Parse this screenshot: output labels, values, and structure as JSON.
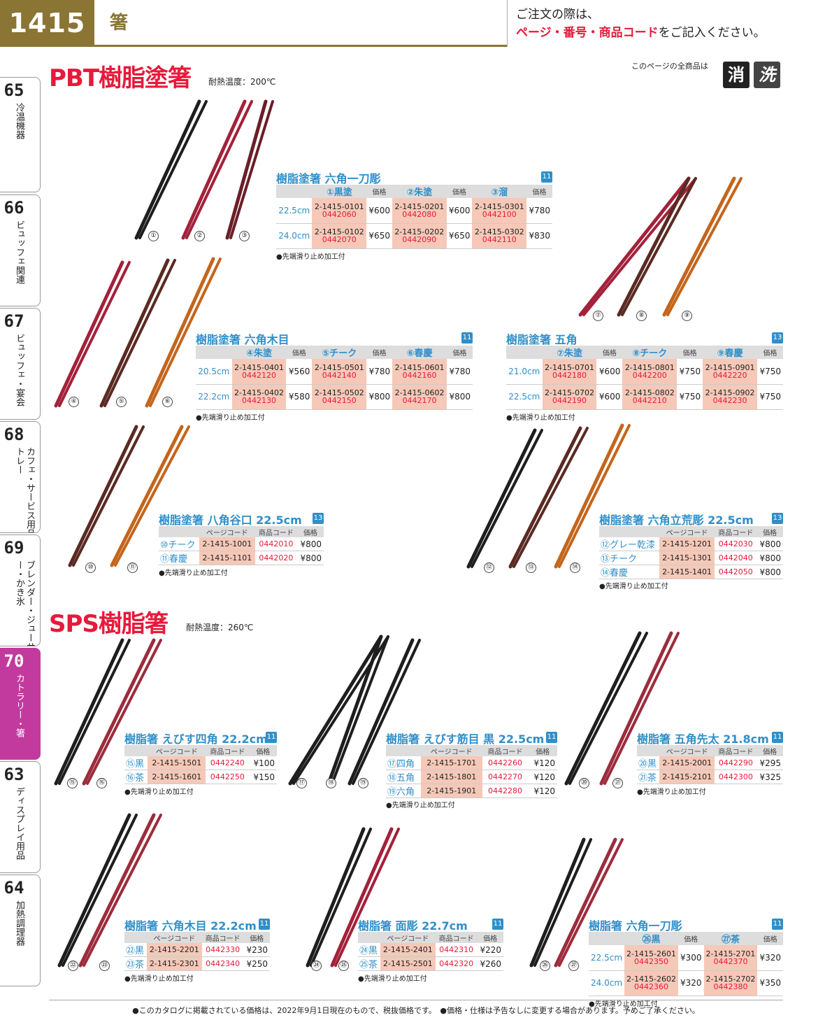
{
  "header": {
    "page_number": "1415",
    "category": "箸",
    "notice_line1": "ご注文の際は、",
    "notice_line2_red": "ページ・番号・商品コード",
    "notice_line2_black": "をご記入ください。"
  },
  "sidebar": [
    {
      "num": "65",
      "label": "冷温機器"
    },
    {
      "num": "66",
      "label": "ビュッフェ関連"
    },
    {
      "num": "67",
      "label": "ビュッフェ・宴会"
    },
    {
      "num": "68",
      "label": "カフェ・サービス用品・トレー"
    },
    {
      "num": "69",
      "label": "ブレンダー・ジューサー・かき氷"
    },
    {
      "num": "70",
      "label": "カトラリー・箸"
    },
    {
      "num": "63",
      "label": "ディスプレイ用品"
    },
    {
      "num": "64",
      "label": "加熱調理器"
    }
  ],
  "sections": {
    "pbt_title": "PBT樹脂塗箸",
    "pbt_note": "耐熱温度：200℃",
    "sps_title": "SPS樹脂箸",
    "sps_note": "耐熱温度：260℃",
    "all_items_label": "このページの全商品は",
    "badge1": "消",
    "badge2": "洗"
  },
  "labels": {
    "price": "価格",
    "page_code": "ページコード",
    "item_code": "商品コード",
    "tip_note": "●先端滑り止め加工付"
  },
  "products": {
    "p1": {
      "title": "樹脂塗箸 六角一刀彫",
      "badge": "11",
      "cols": [
        "①黒塗",
        "②朱塗",
        "③溜"
      ],
      "rows": [
        {
          "size": "22.5cm",
          "items": [
            [
              "2-1415-0101",
              "0442060",
              "¥600"
            ],
            [
              "2-1415-0201",
              "0442080",
              "¥600"
            ],
            [
              "2-1415-0301",
              "0442100",
              "¥780"
            ]
          ]
        },
        {
          "size": "24.0cm",
          "items": [
            [
              "2-1415-0102",
              "0442070",
              "¥650"
            ],
            [
              "2-1415-0202",
              "0442090",
              "¥650"
            ],
            [
              "2-1415-0302",
              "0442110",
              "¥830"
            ]
          ]
        }
      ]
    },
    "p2": {
      "title": "樹脂塗箸 六角木目",
      "badge": "11",
      "cols": [
        "④朱塗",
        "⑤チーク",
        "⑥春慶"
      ],
      "rows": [
        {
          "size": "20.5cm",
          "items": [
            [
              "2-1415-0401",
              "0442120",
              "¥560"
            ],
            [
              "2-1415-0501",
              "0442140",
              "¥780"
            ],
            [
              "2-1415-0601",
              "0442160",
              "¥780"
            ]
          ]
        },
        {
          "size": "22.2cm",
          "items": [
            [
              "2-1415-0402",
              "0442130",
              "¥580"
            ],
            [
              "2-1415-0502",
              "0442150",
              "¥800"
            ],
            [
              "2-1415-0602",
              "0442170",
              "¥800"
            ]
          ]
        }
      ]
    },
    "p3": {
      "title": "樹脂塗箸 五角",
      "badge": "13",
      "cols": [
        "⑦朱塗",
        "⑧チーク",
        "⑨春慶"
      ],
      "rows": [
        {
          "size": "21.0cm",
          "items": [
            [
              "2-1415-0701",
              "0442180",
              "¥600"
            ],
            [
              "2-1415-0801",
              "0442200",
              "¥750"
            ],
            [
              "2-1415-0901",
              "0442220",
              "¥750"
            ]
          ]
        },
        {
          "size": "22.5cm",
          "items": [
            [
              "2-1415-0702",
              "0442190",
              "¥600"
            ],
            [
              "2-1415-0802",
              "0442210",
              "¥750"
            ],
            [
              "2-1415-0902",
              "0442230",
              "¥750"
            ]
          ]
        }
      ]
    },
    "p4": {
      "title": "樹脂塗箸 八角谷口 22.5cm",
      "badge": "13",
      "rows": [
        [
          "⑩チーク",
          "2-1415-1001",
          "0442010",
          "¥800"
        ],
        [
          "⑪春慶",
          "2-1415-1101",
          "0442020",
          "¥800"
        ]
      ]
    },
    "p5": {
      "title": "樹脂塗箸 六角立荒彫 22.5cm",
      "badge": "13",
      "rows": [
        [
          "⑫グレー乾漆",
          "2-1415-1201",
          "0442030",
          "¥800"
        ],
        [
          "⑬チーク",
          "2-1415-1301",
          "0442040",
          "¥800"
        ],
        [
          "⑭春慶",
          "2-1415-1401",
          "0442050",
          "¥800"
        ]
      ]
    },
    "p6": {
      "title": "樹脂箸 えびす四角 22.2cm",
      "badge": "11",
      "rows": [
        [
          "⑮黒",
          "2-1415-1501",
          "0442240",
          "¥100"
        ],
        [
          "⑯茶",
          "2-1415-1601",
          "0442250",
          "¥150"
        ]
      ]
    },
    "p7": {
      "title": "樹脂箸 えびす筋目 黒 22.5cm",
      "badge": "11",
      "rows": [
        [
          "⑰四角",
          "2-1415-1701",
          "0442260",
          "¥120"
        ],
        [
          "⑱五角",
          "2-1415-1801",
          "0442270",
          "¥120"
        ],
        [
          "⑲六角",
          "2-1415-1901",
          "0442280",
          "¥120"
        ]
      ]
    },
    "p8": {
      "title": "樹脂箸 五角先太 21.8cm",
      "badge": "11",
      "rows": [
        [
          "⑳黒",
          "2-1415-2001",
          "0442290",
          "¥295"
        ],
        [
          "㉑茶",
          "2-1415-2101",
          "0442300",
          "¥325"
        ]
      ]
    },
    "p9": {
      "title": "樹脂箸 六角木目 22.2cm",
      "badge": "11",
      "rows": [
        [
          "㉒黒",
          "2-1415-2201",
          "0442330",
          "¥230"
        ],
        [
          "㉓茶",
          "2-1415-2301",
          "0442340",
          "¥250"
        ]
      ]
    },
    "p10": {
      "title": "樹脂箸 面彫 22.7cm",
      "badge": "11",
      "rows": [
        [
          "㉔黒",
          "2-1415-2401",
          "0442310",
          "¥220"
        ],
        [
          "㉕茶",
          "2-1415-2501",
          "0442320",
          "¥260"
        ]
      ]
    },
    "p11": {
      "title": "樹脂箸 六角一刀彫",
      "badge": "11",
      "cols": [
        "㉖黒",
        "㉗茶"
      ],
      "rows": [
        {
          "size": "22.5cm",
          "items": [
            [
              "2-1415-2601",
              "0442350",
              "¥300"
            ],
            [
              "2-1415-2701",
              "0442370",
              "¥320"
            ]
          ]
        },
        {
          "size": "24.0cm",
          "items": [
            [
              "2-1415-2602",
              "0442360",
              "¥320"
            ],
            [
              "2-1415-2702",
              "0442380",
              "¥350"
            ]
          ]
        }
      ]
    }
  },
  "chopstick_labels": [
    "①",
    "②",
    "③",
    "④",
    "⑤",
    "⑥",
    "⑦",
    "⑧",
    "⑨",
    "⑩",
    "⑪",
    "⑫",
    "⑬",
    "⑭",
    "⑮",
    "⑯",
    "⑰",
    "⑱",
    "⑲",
    "⑳",
    "㉑",
    "㉒",
    "㉓",
    "㉔",
    "㉕",
    "㉖",
    "㉗"
  ],
  "colors": {
    "black": "#1e1e1e",
    "vermilion": "#a3213a",
    "tame": "#6a1f28",
    "teak": "#5a2a22",
    "shunkei": "#c4651c",
    "gray": "#333333",
    "brown": "#9c2c3c"
  },
  "footer": "●このカタログに掲載されている価格は、2022年9月1日現在のもので、税抜価格です。　●価格・仕様は予告なしに変更する場合があります。予めご了承ください。"
}
